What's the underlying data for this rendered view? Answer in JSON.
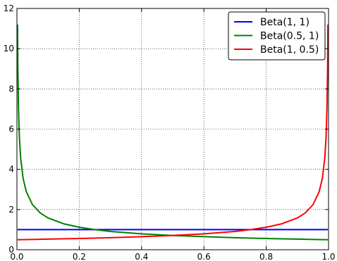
{
  "chart_data": {
    "type": "line",
    "title": "",
    "xlabel": "",
    "ylabel": "",
    "xlim": [
      0.0,
      1.0
    ],
    "ylim": [
      0,
      12
    ],
    "x_ticks": [
      "0.0",
      "0.2",
      "0.4",
      "0.6",
      "0.8",
      "1.0"
    ],
    "y_ticks": [
      "0",
      "2",
      "4",
      "6",
      "8",
      "10",
      "12"
    ],
    "grid": true,
    "legend_position": "top-right",
    "series": [
      {
        "name": "Beta(1, 1)",
        "color": "#0000ff",
        "x": [
          0.002,
          0.01,
          0.05,
          0.1,
          0.2,
          0.3,
          0.4,
          0.5,
          0.6,
          0.7,
          0.8,
          0.9,
          0.95,
          0.99,
          0.998
        ],
        "y": [
          1,
          1,
          1,
          1,
          1,
          1,
          1,
          1,
          1,
          1,
          1,
          1,
          1,
          1,
          1
        ]
      },
      {
        "name": "Beta(0.5, 1)",
        "color": "#008000",
        "x": [
          0.002,
          0.003,
          0.005,
          0.008,
          0.012,
          0.02,
          0.03,
          0.05,
          0.075,
          0.1,
          0.15,
          0.2,
          0.25,
          0.3,
          0.4,
          0.5,
          0.6,
          0.7,
          0.8,
          0.9,
          0.95,
          0.998
        ],
        "y": [
          11.2,
          9.13,
          7.07,
          5.59,
          4.56,
          3.54,
          2.89,
          2.24,
          1.83,
          1.58,
          1.29,
          1.12,
          1.0,
          0.91,
          0.79,
          0.71,
          0.65,
          0.6,
          0.56,
          0.53,
          0.51,
          0.5
        ]
      },
      {
        "name": "Beta(1, 0.5)",
        "color": "#ff0000",
        "x": [
          0.002,
          0.05,
          0.1,
          0.2,
          0.3,
          0.4,
          0.5,
          0.6,
          0.7,
          0.75,
          0.8,
          0.85,
          0.9,
          0.925,
          0.95,
          0.97,
          0.98,
          0.988,
          0.992,
          0.995,
          0.997,
          0.998
        ],
        "y": [
          0.5,
          0.51,
          0.53,
          0.56,
          0.6,
          0.65,
          0.71,
          0.79,
          0.91,
          1.0,
          1.12,
          1.29,
          1.58,
          1.83,
          2.24,
          2.89,
          3.54,
          4.56,
          5.59,
          7.07,
          9.13,
          11.2
        ]
      }
    ]
  }
}
